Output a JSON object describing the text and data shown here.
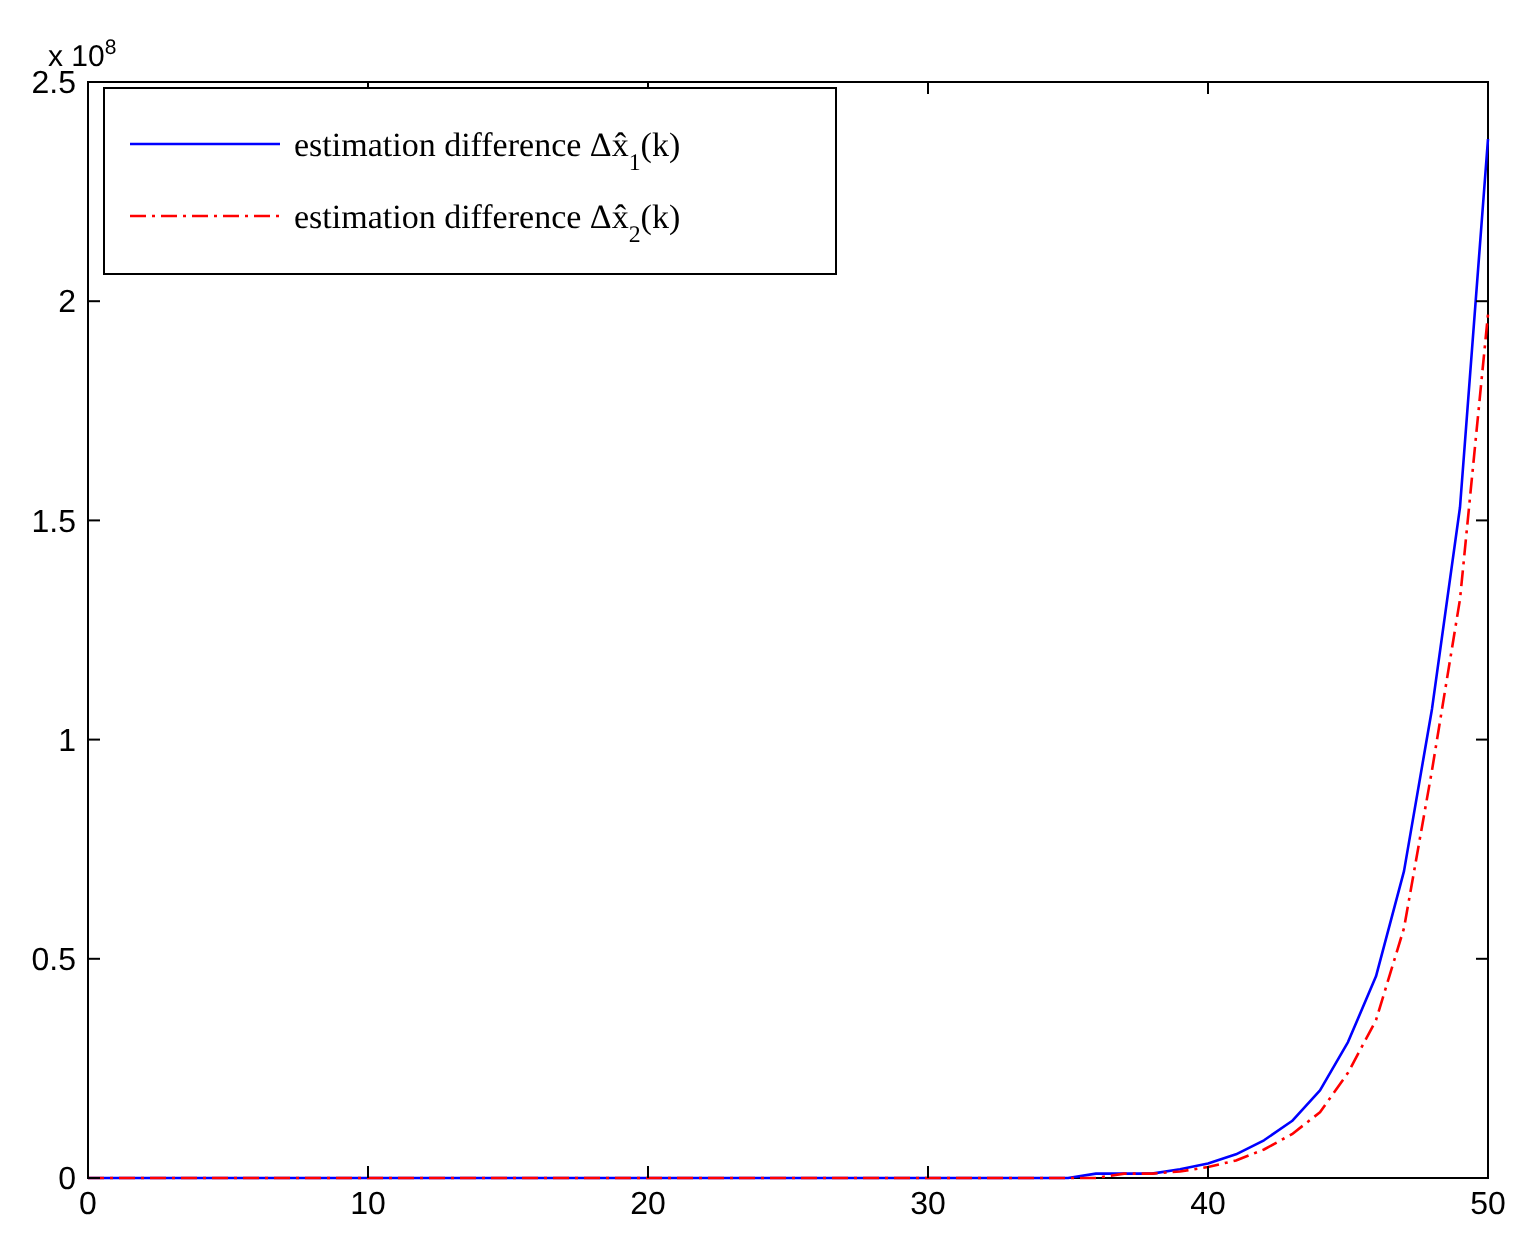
{
  "chart_data": {
    "type": "line",
    "x": [
      0,
      30,
      31,
      32,
      33,
      34,
      35,
      36,
      37,
      38,
      39,
      40,
      41,
      42,
      43,
      44,
      45,
      46,
      47,
      48,
      49,
      50
    ],
    "series": [
      {
        "name": "estimation difference Δx̂$_{1}$(k)",
        "color": "#0000ff",
        "line_style": "solid",
        "values": [
          0,
          0,
          0,
          0,
          0,
          0,
          0,
          0.01,
          0.01,
          0.01,
          0.02,
          0.033,
          0.054,
          0.086,
          0.13,
          0.2,
          0.31,
          0.46,
          0.7,
          1.07,
          1.53,
          2.37
        ]
      },
      {
        "name": "estimation difference Δx̂$_{2}$(k)",
        "color": "#ff0000",
        "line_style": "dashdot",
        "values": [
          0,
          0,
          0,
          0,
          0,
          0,
          0,
          0,
          0.01,
          0.01,
          0.015,
          0.025,
          0.04,
          0.065,
          0.1,
          0.15,
          0.24,
          0.36,
          0.57,
          0.93,
          1.32,
          1.97
        ]
      }
    ],
    "xlim": [
      0,
      50
    ],
    "xticks": [
      0,
      10,
      20,
      30,
      40,
      50
    ],
    "ylim": [
      0,
      2.5
    ],
    "yticks": [
      0,
      0.5,
      1,
      1.5,
      2,
      2.5
    ],
    "annotations": [
      "x 10$^{8}$"
    ],
    "legend": "top left",
    "grid": false
  }
}
